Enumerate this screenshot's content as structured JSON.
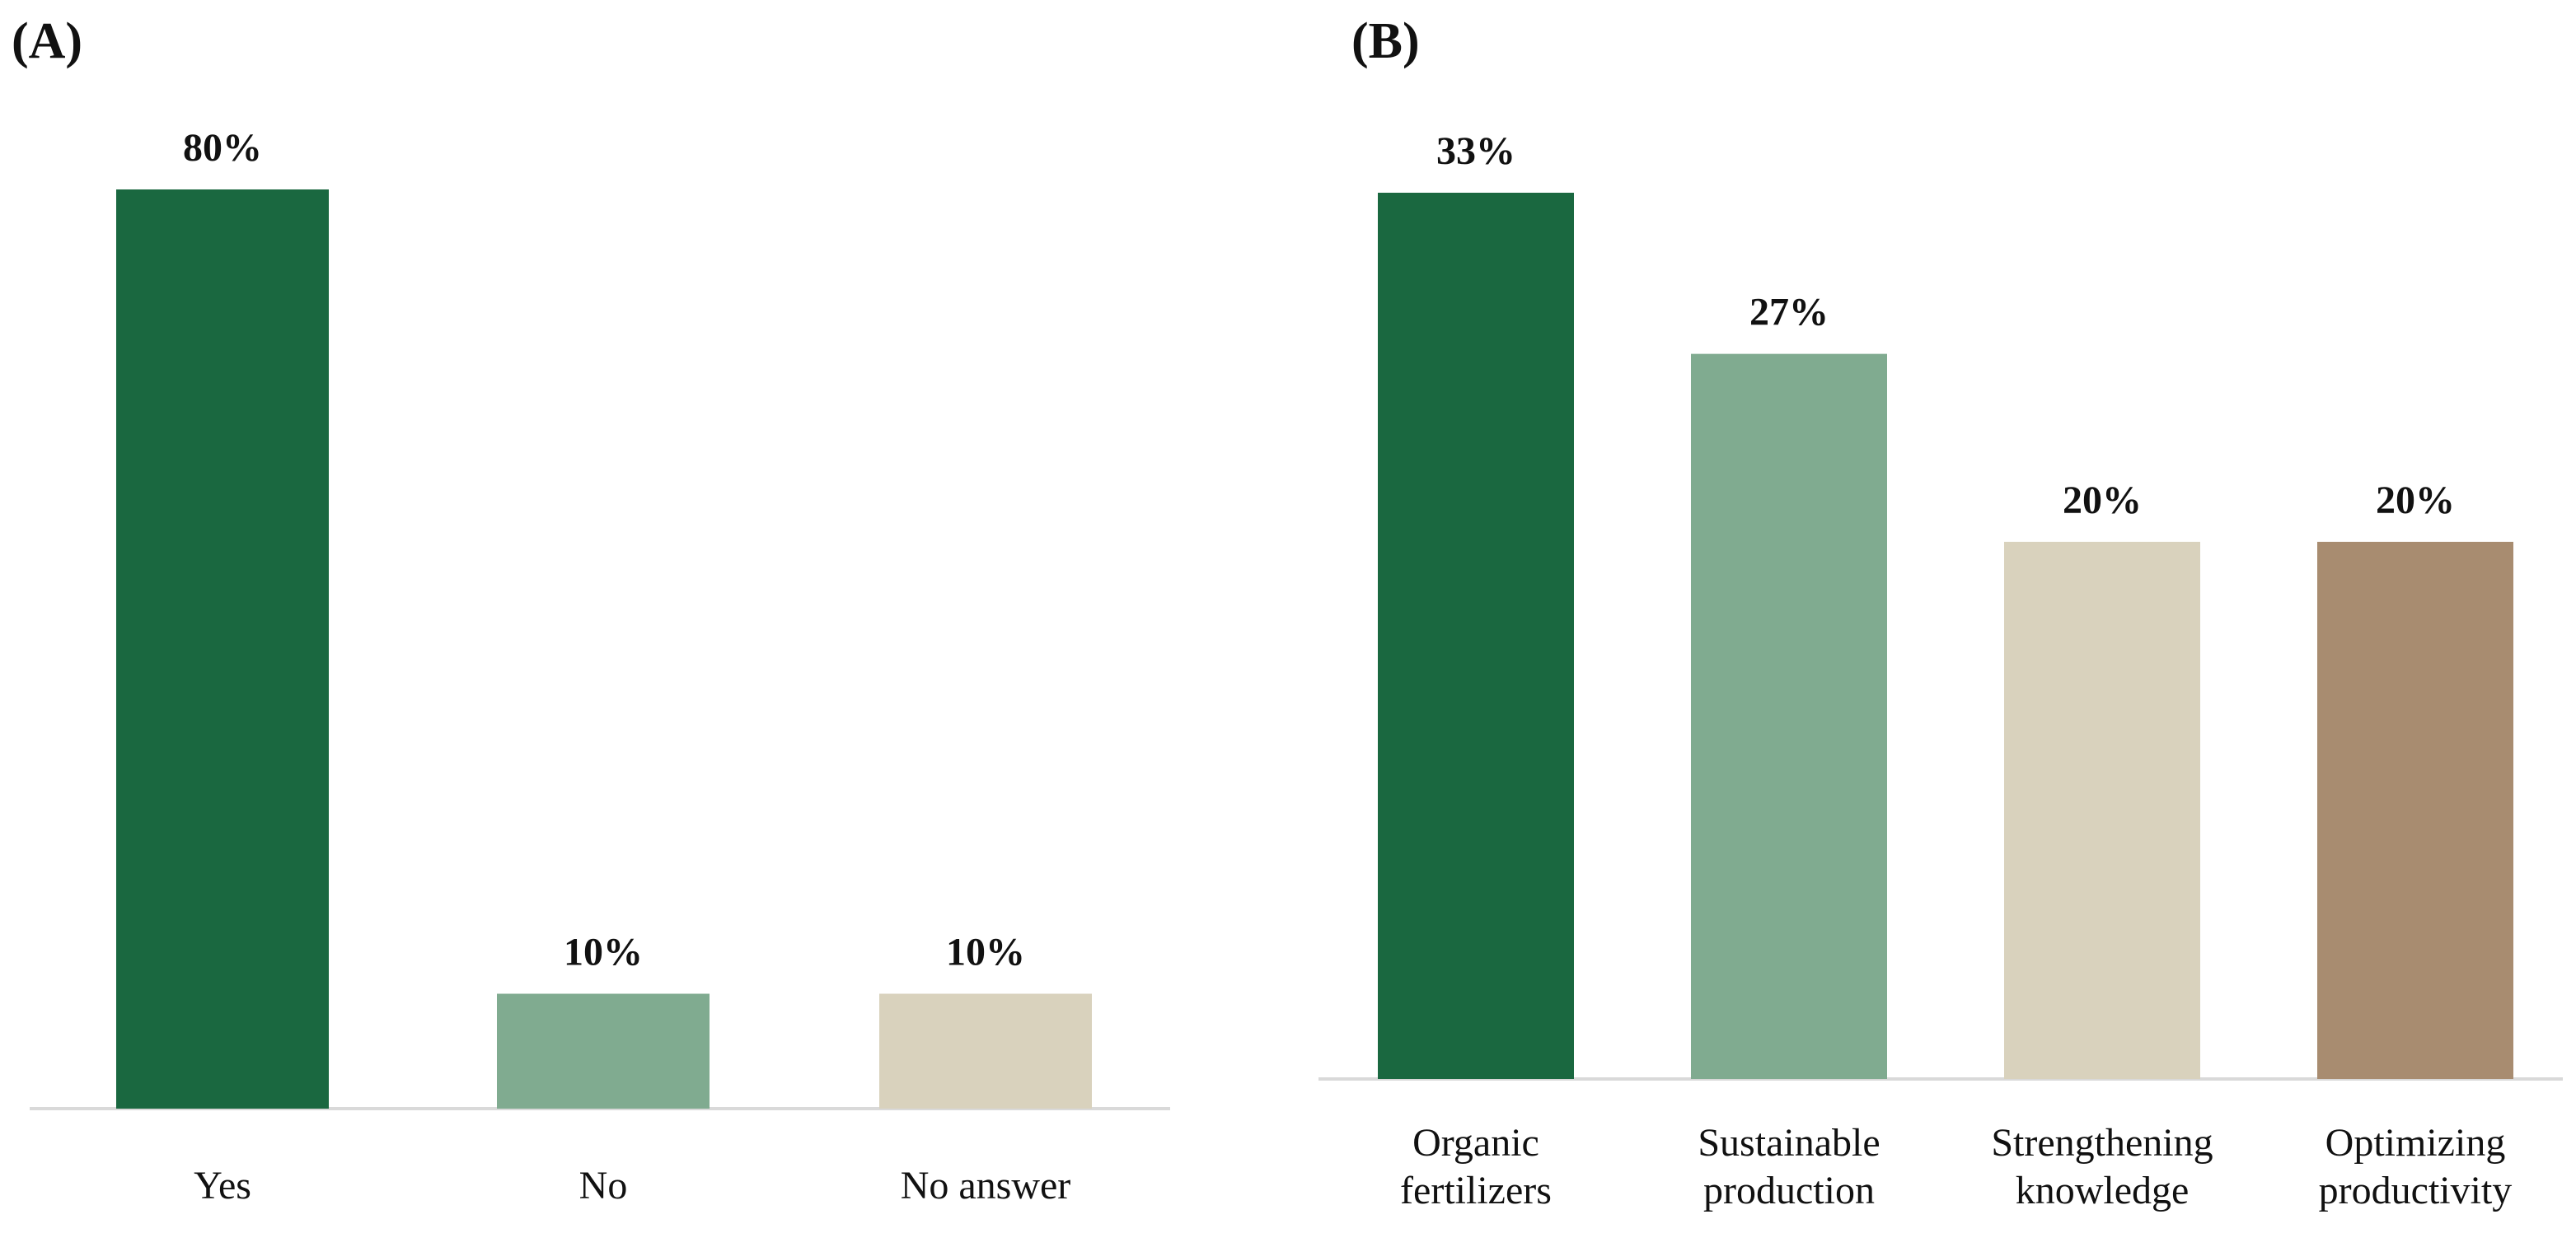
{
  "chart_data": [
    {
      "type": "bar",
      "panel_label": "(A)",
      "categories": [
        "Yes",
        "No",
        "No answer"
      ],
      "values": [
        80,
        10,
        10
      ],
      "value_labels": [
        "80%",
        "10%",
        "10%"
      ],
      "colors": [
        "#1a6840",
        "#80ab90",
        "#d9d2bd"
      ],
      "ylim": [
        0,
        80
      ],
      "grid": false,
      "legend": "none"
    },
    {
      "type": "bar",
      "panel_label": "(B)",
      "categories": [
        [
          "Organic",
          "fertilizers"
        ],
        [
          "Sustainable",
          "production"
        ],
        [
          "Strengthening",
          "knowledge"
        ],
        [
          "Optimizing",
          "productivity"
        ]
      ],
      "values": [
        33,
        27,
        20,
        20
      ],
      "value_labels": [
        "33%",
        "27%",
        "20%",
        "20%"
      ],
      "colors": [
        "#1a6840",
        "#80ab90",
        "#d9d2bd",
        "#a88c70"
      ],
      "ylim": [
        0,
        33
      ],
      "grid": false,
      "legend": "none"
    }
  ]
}
